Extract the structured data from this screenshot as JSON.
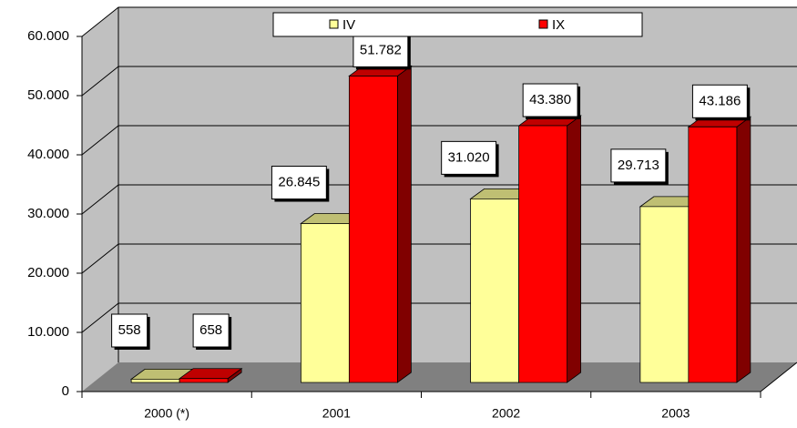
{
  "chart_data": {
    "type": "bar3d",
    "categories": [
      "2000 (*)",
      "2001",
      "2002",
      "2003"
    ],
    "series": [
      {
        "name": "IV",
        "color": "#ffff99",
        "values": [
          558,
          26845,
          31020,
          29713
        ],
        "value_labels": [
          "558",
          "26.845",
          "31.020",
          "29.713"
        ]
      },
      {
        "name": "IX",
        "color": "#ff0000",
        "values": [
          658,
          51782,
          43380,
          43186
        ],
        "value_labels": [
          "658",
          "51.782",
          "43.380",
          "43.186"
        ]
      }
    ],
    "ylim": [
      0,
      60000
    ],
    "yticks": [
      0,
      {
        "value": 10000,
        "label": "10.000"
      },
      {
        "value": 20000,
        "label": "20.000"
      },
      {
        "value": 30000,
        "label": "30.000"
      },
      {
        "value": 40000,
        "label": "40.000"
      },
      {
        "value": 50000,
        "label": "50.000"
      },
      {
        "value": 60000,
        "label": "60.000"
      }
    ],
    "grid": true,
    "legend": "top"
  }
}
